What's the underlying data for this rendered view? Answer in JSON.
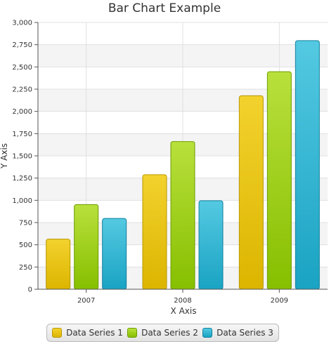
{
  "chart_data": {
    "type": "bar",
    "title": "Bar Chart Example",
    "xlabel": "X Axis",
    "ylabel": "Y Axis",
    "categories": [
      "2007",
      "2008",
      "2009"
    ],
    "series": [
      {
        "name": "Data Series 1",
        "values": [
          567,
          1292,
          2180
        ],
        "color": "#f3d22e",
        "color_dark": "#dcb500",
        "stroke": "#b99700"
      },
      {
        "name": "Data Series 2",
        "values": [
          956,
          1665,
          2450
        ],
        "color": "#b9e03c",
        "color_dark": "#86bf00",
        "stroke": "#6c9c00"
      },
      {
        "name": "Data Series 3",
        "values": [
          800,
          1000,
          2800
        ],
        "color": "#54c9e2",
        "color_dark": "#1aa3c3",
        "stroke": "#13819d"
      }
    ],
    "ylim": [
      0,
      3000
    ],
    "y_tick_step": 250,
    "y_tick_labels": [
      "0",
      "250",
      "500",
      "750",
      "1,000",
      "1,250",
      "1,500",
      "1,750",
      "2,000",
      "2,250",
      "2,500",
      "2,750",
      "3,000"
    ],
    "grid": true,
    "legend_position": "bottom"
  }
}
